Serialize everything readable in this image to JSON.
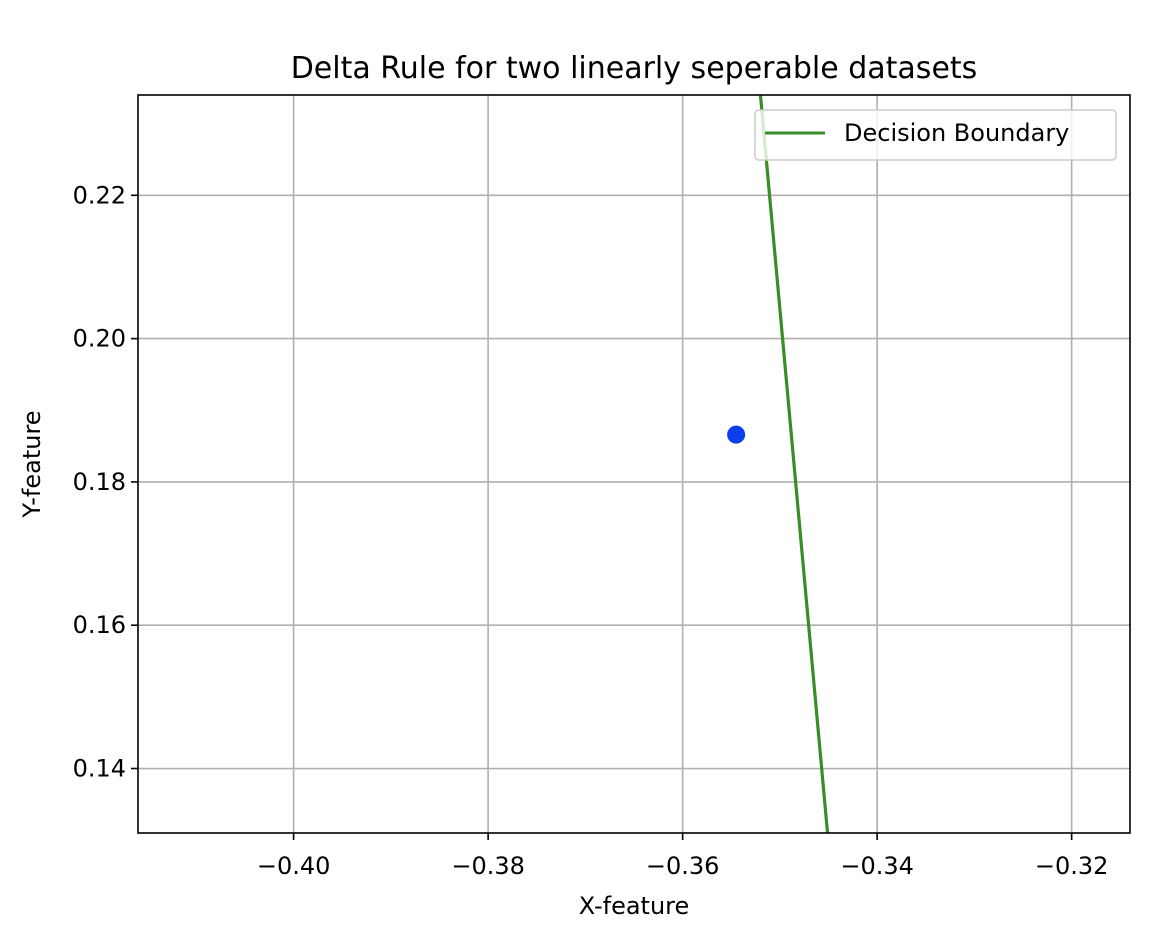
{
  "chart_data": {
    "type": "scatter",
    "title": "Delta Rule for two linearly seperable datasets",
    "xlabel": "X-feature",
    "ylabel": "Y-feature",
    "xlim": [
      -0.416,
      -0.314
    ],
    "ylim": [
      0.131,
      0.234
    ],
    "grid": true,
    "legend_position": "top-right",
    "x_ticks": [
      -0.4,
      -0.38,
      -0.36,
      -0.34,
      -0.32
    ],
    "x_tick_labels": [
      "−0.40",
      "−0.38",
      "−0.36",
      "−0.34",
      "−0.32"
    ],
    "y_ticks": [
      0.14,
      0.16,
      0.18,
      0.2,
      0.22
    ],
    "y_tick_labels": [
      "0.14",
      "0.16",
      "0.18",
      "0.20",
      "0.22"
    ],
    "series": [
      {
        "name": "Decision Boundary",
        "kind": "line",
        "color": "#3a8c27",
        "x": [
          -0.352,
          -0.3451
        ],
        "y": [
          0.234,
          0.131
        ]
      },
      {
        "kind": "scatter",
        "color": "#0a3ff0",
        "x": [
          -0.3545
        ],
        "y": [
          0.1866
        ]
      }
    ]
  }
}
